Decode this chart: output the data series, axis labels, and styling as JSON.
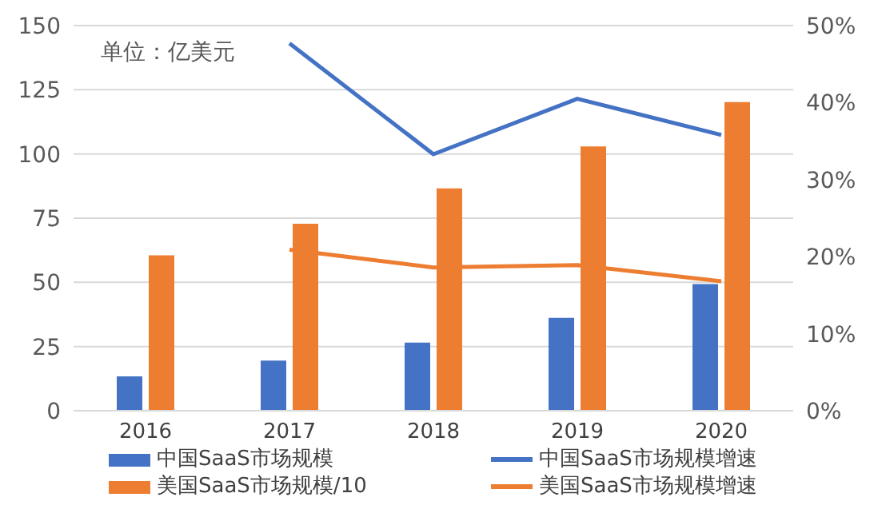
{
  "chart_data": {
    "type": "bar",
    "categories": [
      "2016",
      "2017",
      "2018",
      "2019",
      "2020"
    ],
    "series": [
      {
        "name": "中国SaaS市场规模",
        "color": "#4472c4",
        "values": [
          13.4,
          19.5,
          26.5,
          36.2,
          49.3
        ]
      },
      {
        "name": "美国SaaS市场规模/10",
        "color": "#ed7d31",
        "values": [
          60.5,
          72.8,
          86.6,
          102.9,
          120.2
        ]
      },
      {
        "name": "中国SaaS市场规模增速",
        "type": "line",
        "axis": "y2",
        "color": "#4472c4",
        "values": [
          null,
          47.7,
          33.3,
          40.5,
          35.8
        ]
      },
      {
        "name": "美国SaaS市场规模增速",
        "type": "line",
        "axis": "y2",
        "color": "#ed7d31",
        "values": [
          null,
          20.9,
          18.6,
          18.9,
          16.8
        ]
      }
    ],
    "ylim": [
      0,
      150
    ],
    "yticks": [
      0,
      25,
      50,
      75,
      100,
      125,
      150
    ],
    "y2lim": [
      0,
      50
    ],
    "y2ticks": [
      {
        "value": 0,
        "label": "0%"
      },
      {
        "value": 10,
        "label": "10%"
      },
      {
        "value": 20,
        "label": "20%"
      },
      {
        "value": 30,
        "label": "30%"
      },
      {
        "value": 40,
        "label": "40%"
      },
      {
        "value": 50,
        "label": "50%"
      }
    ],
    "annotations": [
      "单位：亿美元"
    ],
    "grid": "y",
    "legend": "bottom",
    "marker": "none"
  }
}
